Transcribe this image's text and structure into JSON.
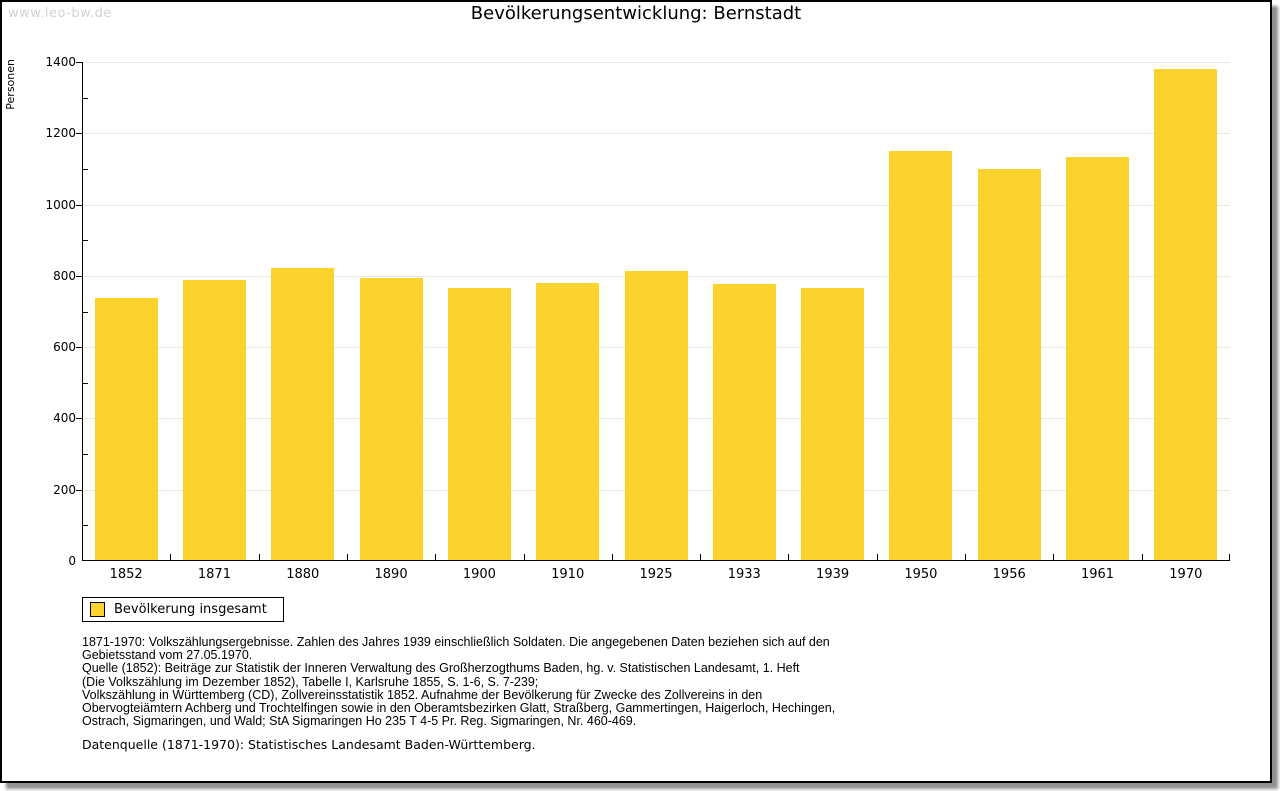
{
  "watermark": "www.leo-bw.de",
  "title": "Bevölkerungsentwicklung: Bernstadt",
  "chart_data": {
    "type": "bar",
    "title": "Bevölkerungsentwicklung: Bernstadt",
    "xlabel": "",
    "ylabel": "Personen",
    "ylim": [
      0,
      1400
    ],
    "ytick_major": 200,
    "ytick_minor": 100,
    "grid": "horizontal-major",
    "legend_position": "bottom-left",
    "categories": [
      "1852",
      "1871",
      "1880",
      "1890",
      "1900",
      "1910",
      "1925",
      "1933",
      "1939",
      "1950",
      "1956",
      "1961",
      "1970"
    ],
    "series": [
      {
        "name": "Bevölkerung insgesamt",
        "values": [
          736,
          787,
          819,
          790,
          764,
          776,
          810,
          773,
          762,
          1147,
          1096,
          1131,
          1377
        ]
      }
    ]
  },
  "legend": {
    "label": "Bevölkerung insgesamt",
    "swatch_color": "#fcd32d"
  },
  "footnotes": {
    "lines": [
      "1871-1970: Volkszählungsergebnisse. Zahlen des Jahres 1939 einschließlich Soldaten. Die angegebenen Daten beziehen sich auf den",
      "Gebietsstand vom 27.05.1970.",
      "Quelle (1852): Beiträge zur Statistik der Inneren Verwaltung des Großherzogthums Baden, hg. v. Statistischen Landesamt, 1. Heft",
      "(Die Volkszählung im Dezember 1852), Tabelle I, Karlsruhe 1855, S. 1-6, S. 7-239;",
      "Volkszählung in Württemberg (CD), Zollvereinsstatistik 1852. Aufnahme der Bevölkerung für Zwecke des Zollvereins in den",
      "Obervogteiämtern Achberg und Trochtelfingen sowie in den Oberamtsbezirken Glatt, Straßberg, Gammertingen, Haigerloch, Hechingen,",
      "Ostrach, Sigmaringen, und Wald; StA Sigmaringen Ho 235 T 4-5 Pr. Reg. Sigmaringen, Nr. 460-469."
    ]
  },
  "datenquelle": "Datenquelle (1871-1970): Statistisches Landesamt Baden-Württemberg.",
  "colors": {
    "bar": "#fcd32d",
    "grid": "#e6e6e6",
    "axis": "#000000",
    "watermark": "#d2d2d2"
  }
}
